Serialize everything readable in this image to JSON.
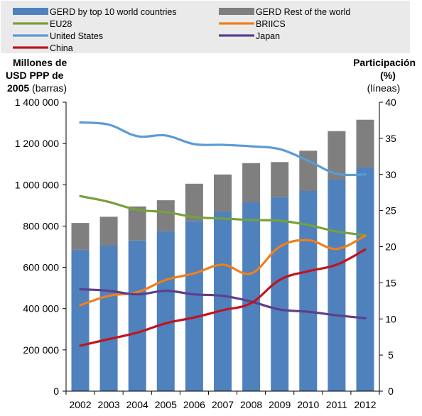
{
  "chart_data": {
    "type": "bar",
    "categories": [
      "2002",
      "2003",
      "2004",
      "2005",
      "2006",
      "2007",
      "2008",
      "2009",
      "2010",
      "2011",
      "2012"
    ],
    "bar_series": [
      {
        "name": "GERD by top 10 world countries",
        "color": "#4f81bd",
        "values": [
          685000,
          705000,
          730000,
          775000,
          825000,
          870000,
          915000,
          940000,
          970000,
          1025000,
          1085000
        ]
      },
      {
        "name": "GERD Rest of the world",
        "color": "#7f7f7f",
        "values": [
          130000,
          140000,
          165000,
          150000,
          180000,
          180000,
          190000,
          170000,
          195000,
          235000,
          230000
        ]
      }
    ],
    "line_series": [
      {
        "name": "EU28",
        "color": "#77a03a",
        "values": [
          27.0,
          26.2,
          25.1,
          24.8,
          24.1,
          23.9,
          23.7,
          23.6,
          23.0,
          22.1,
          21.6
        ]
      },
      {
        "name": "BRIICS",
        "color": "#f07f1b",
        "values": [
          11.9,
          13.2,
          13.7,
          15.4,
          16.3,
          17.5,
          16.3,
          20.0,
          20.9,
          19.7,
          21.5
        ]
      },
      {
        "name": "United States",
        "color": "#5b9bd5",
        "values": [
          37.2,
          36.9,
          35.3,
          35.4,
          34.2,
          34.1,
          33.9,
          33.5,
          31.9,
          30.1,
          30.0
        ]
      },
      {
        "name": "Japan",
        "color": "#5e3f8a",
        "values": [
          14.1,
          13.9,
          13.4,
          13.9,
          13.4,
          13.2,
          12.4,
          11.3,
          11.0,
          10.5,
          10.1
        ]
      },
      {
        "name": "China",
        "color": "#c0141d",
        "values": [
          6.3,
          7.2,
          8.1,
          9.4,
          10.2,
          11.2,
          12.2,
          15.4,
          16.6,
          17.5,
          19.6
        ]
      }
    ],
    "left_axis": {
      "title_bold": "Millones de USD PPP de 2005",
      "title_lines": [
        "Millones de",
        "USD PPP de",
        "2005"
      ],
      "title_suffix": "(barras)",
      "ylim": [
        0,
        1400000
      ],
      "ticks": [
        "0",
        "200 000",
        "400 000",
        "600 000",
        "800 000",
        "1 000 000",
        "1 200 000",
        "1 400 000"
      ],
      "tick_values": [
        0,
        200000,
        400000,
        600000,
        800000,
        1000000,
        1200000,
        1400000
      ]
    },
    "right_axis": {
      "title_line1": "Participación",
      "title_line2": "(%)",
      "title_line3": "(líneas)",
      "ylim": [
        0,
        40
      ],
      "ticks": [
        "0",
        "5",
        "10",
        "15",
        "20",
        "25",
        "30",
        "35",
        "40"
      ],
      "tick_values": [
        0,
        5,
        10,
        15,
        20,
        25,
        30,
        35,
        40
      ]
    },
    "legend_placement": "top",
    "grid": false
  }
}
